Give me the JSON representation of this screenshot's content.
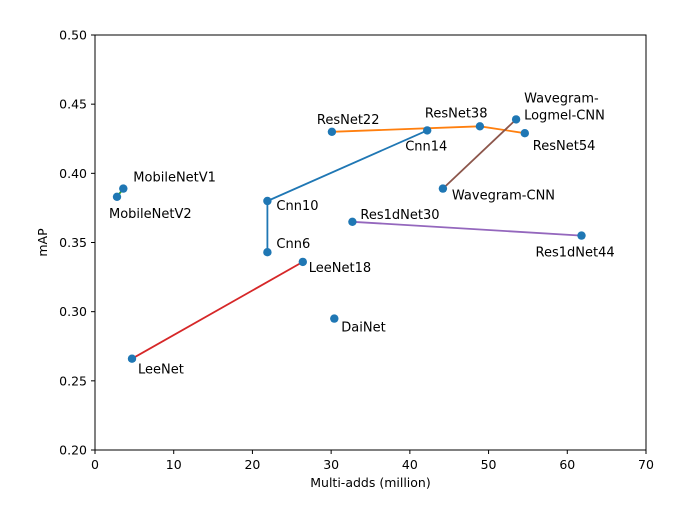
{
  "chart_data": {
    "type": "scatter",
    "xlabel": "Multi-adds (million)",
    "ylabel": "mAP",
    "xlim": [
      0,
      70
    ],
    "ylim": [
      0.2,
      0.5
    ],
    "x_ticks": [
      0,
      10,
      20,
      30,
      40,
      50,
      60,
      70
    ],
    "y_ticks": [
      "0.20",
      "0.25",
      "0.30",
      "0.35",
      "0.40",
      "0.45",
      "0.50"
    ],
    "grid": false,
    "legend": "none",
    "points": [
      {
        "label": "MobileNetV1",
        "x": 3.6,
        "y": 0.389
      },
      {
        "label": "MobileNetV2",
        "x": 2.8,
        "y": 0.383
      },
      {
        "label": "LeeNet",
        "x": 4.7,
        "y": 0.266
      },
      {
        "label": "LeeNet18",
        "x": 26.4,
        "y": 0.336
      },
      {
        "label": "DaiNet",
        "x": 30.4,
        "y": 0.295
      },
      {
        "label": "Cnn6",
        "x": 21.9,
        "y": 0.343
      },
      {
        "label": "Cnn10",
        "x": 21.9,
        "y": 0.38
      },
      {
        "label": "Cnn14",
        "x": 42.2,
        "y": 0.431
      },
      {
        "label": "ResNet22",
        "x": 30.1,
        "y": 0.43
      },
      {
        "label": "ResNet38",
        "x": 48.9,
        "y": 0.434
      },
      {
        "label": "ResNet54",
        "x": 54.6,
        "y": 0.429
      },
      {
        "label": "Res1dNet30",
        "x": 32.7,
        "y": 0.365
      },
      {
        "label": "Res1dNet44",
        "x": 61.8,
        "y": 0.355
      },
      {
        "label": "Wavegram-CNN",
        "x": 44.2,
        "y": 0.389
      },
      {
        "label": "Wavegram-\nLogmel-CNN",
        "x": 53.5,
        "y": 0.439
      }
    ],
    "lines": [
      {
        "points": [
          "Cnn6",
          "Cnn10",
          "Cnn14"
        ],
        "color": "#1f77b4"
      },
      {
        "points": [
          "ResNet22",
          "ResNet38",
          "ResNet54"
        ],
        "color": "#ff7f0e"
      },
      {
        "points": [
          "LeeNet",
          "LeeNet18"
        ],
        "color": "#d62728"
      },
      {
        "points": [
          "Res1dNet30",
          "Res1dNet44"
        ],
        "color": "#9467bd"
      },
      {
        "points": [
          "Wavegram-CNN",
          "Wavegram-\nLogmel-CNN"
        ],
        "color": "#8c564b"
      },
      {
        "points": [
          "MobileNetV1",
          "MobileNetV2"
        ],
        "color": "#2ca02c"
      }
    ],
    "marker_color": "#1f77b4"
  }
}
